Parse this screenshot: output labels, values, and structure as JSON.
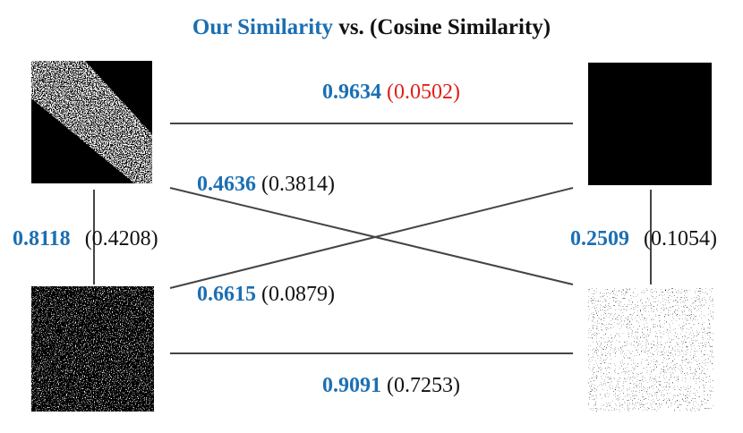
{
  "title": {
    "ours": "Our Similarity",
    "rest": "vs. (Cosine Similarity)"
  },
  "edges": [
    {
      "ours": "0.9634",
      "cosine": "(0.0502)"
    },
    {
      "ours": "0.4636",
      "cosine": "(0.3814)"
    },
    {
      "ours": "0.8118",
      "cosine": "(0.4208)"
    },
    {
      "ours": "0.2509",
      "cosine": "(0.1054)"
    },
    {
      "ours": "0.6615",
      "cosine": "(0.0879)"
    },
    {
      "ours": "0.9091",
      "cosine": "(0.7253)"
    }
  ]
}
